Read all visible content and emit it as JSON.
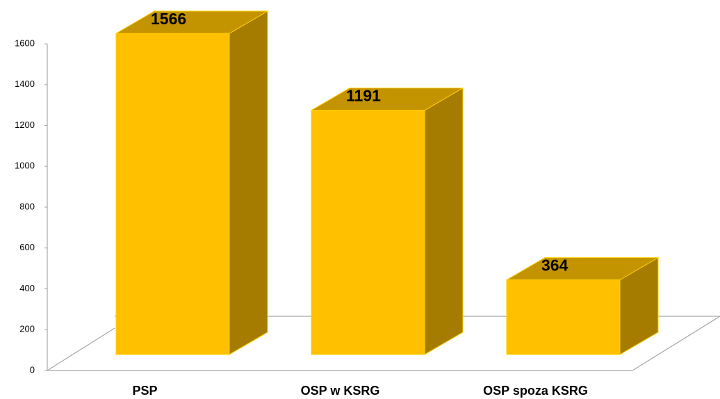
{
  "chart_data": {
    "type": "bar3d",
    "categories": [
      "PSP",
      "OSP w KSRG",
      "OSP spoza KSRG"
    ],
    "values": [
      1566,
      1191,
      364
    ],
    "color": "#ffc000",
    "ylim": [
      0,
      1600
    ],
    "yticks": [
      0,
      200,
      400,
      600,
      800,
      1000,
      1200,
      1400,
      1600
    ]
  }
}
